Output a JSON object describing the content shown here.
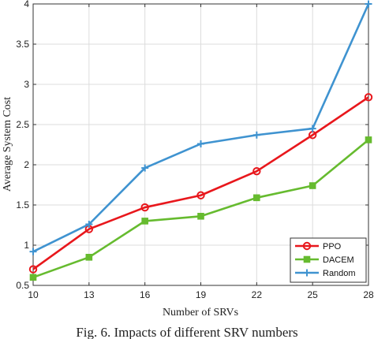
{
  "chart_data": {
    "type": "line",
    "xlabel": "Number of SRVs",
    "ylabel": "Average System Cost",
    "x": [
      10,
      13,
      16,
      19,
      22,
      25,
      28
    ],
    "xticks": [
      "10",
      "13",
      "16",
      "19",
      "22",
      "25",
      "28"
    ],
    "yticks": [
      "0.5",
      "1",
      "1.5",
      "2",
      "2.5",
      "3",
      "3.5",
      "4"
    ],
    "xlim": [
      10,
      28
    ],
    "ylim": [
      0.5,
      4
    ],
    "grid": true,
    "legend_position": "bottom-right",
    "series": [
      {
        "name": "PPO",
        "color": "#e8171c",
        "marker": "circle",
        "values": [
          0.7,
          1.2,
          1.47,
          1.62,
          1.92,
          2.37,
          2.84
        ]
      },
      {
        "name": "DACEM",
        "color": "#66bb2f",
        "marker": "square",
        "values": [
          0.6,
          0.85,
          1.3,
          1.36,
          1.59,
          1.74,
          2.31
        ]
      },
      {
        "name": "Random",
        "color": "#3f93d0",
        "marker": "plus",
        "values": [
          0.92,
          1.26,
          1.96,
          2.26,
          2.37,
          2.45,
          4.0
        ]
      }
    ]
  },
  "caption": "Fig. 6. Impacts of different SRV numbers"
}
